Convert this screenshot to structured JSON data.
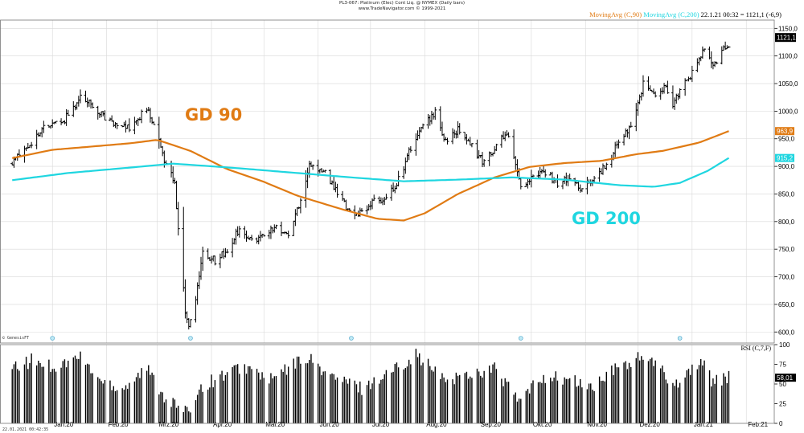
{
  "header": {
    "title": "PL3-067: Platinum (Elec) Cont Liq. @ NYMEX  (Daily bars)",
    "subtitle": "www.TradeNavigator.com © 1999-2021"
  },
  "legend": {
    "ma90_label": "MovingAvg (C,90)",
    "ma200_label": "MovingAvg (C,200)",
    "price_info": "22.1.21 00:32 = 1121,1 (-6,9)"
  },
  "annotations": {
    "gd90": "GD 90",
    "gd200": "GD 200"
  },
  "footer": {
    "timestamp": "22.01.2021 00:42:35",
    "credit": "© GenesisFT"
  },
  "colors": {
    "ma90": "#e07b14",
    "ma200": "#1fd6e0",
    "bars": "#000000",
    "grid": "#d8d8d8",
    "axis_box": "#000000"
  },
  "chart_data": [
    {
      "type": "ohlc",
      "title": "PL3-067: Platinum (Elec) Cont Liq. @ NYMEX  (Daily bars)",
      "x_labels": [
        "Jan.20",
        "Feb.20",
        "Mrz.20",
        "Apr.20",
        "Mai.20",
        "Jun.20",
        "Jul.20",
        "Aug.20",
        "Sep.20",
        "Okt.20",
        "Nov.20",
        "Dez.20",
        "Jan.21",
        "Feb.21"
      ],
      "y_ticks": [
        600,
        650,
        700,
        750,
        800,
        850,
        900,
        950,
        1000,
        1050,
        1100,
        1150
      ],
      "y_range": [
        580,
        1165
      ],
      "grid": true,
      "last_price_badge": "1121,1",
      "price_anchors": [
        {
          "date": "2019-12-09",
          "close": 905
        },
        {
          "date": "2019-12-17",
          "close": 935
        },
        {
          "date": "2019-12-27",
          "close": 968
        },
        {
          "date": "2020-01-08",
          "close": 985
        },
        {
          "date": "2020-01-17",
          "close": 1025
        },
        {
          "date": "2020-01-23",
          "close": 1015
        },
        {
          "date": "2020-02-05",
          "close": 975
        },
        {
          "date": "2020-02-14",
          "close": 970
        },
        {
          "date": "2020-02-24",
          "close": 1005
        },
        {
          "date": "2020-03-02",
          "close": 945
        },
        {
          "date": "2020-03-06",
          "close": 900
        },
        {
          "date": "2020-03-11",
          "close": 870
        },
        {
          "date": "2020-03-13",
          "close": 790
        },
        {
          "date": "2020-03-17",
          "close": 640
        },
        {
          "date": "2020-03-19",
          "close": 605
        },
        {
          "date": "2020-03-23",
          "close": 660
        },
        {
          "date": "2020-03-27",
          "close": 740
        },
        {
          "date": "2020-04-03",
          "close": 730
        },
        {
          "date": "2020-04-10",
          "close": 745
        },
        {
          "date": "2020-04-17",
          "close": 790
        },
        {
          "date": "2020-04-24",
          "close": 765
        },
        {
          "date": "2020-05-01",
          "close": 775
        },
        {
          "date": "2020-05-08",
          "close": 790
        },
        {
          "date": "2020-05-15",
          "close": 775
        },
        {
          "date": "2020-05-22",
          "close": 840
        },
        {
          "date": "2020-05-27",
          "close": 905
        },
        {
          "date": "2020-06-05",
          "close": 890
        },
        {
          "date": "2020-06-12",
          "close": 850
        },
        {
          "date": "2020-06-19",
          "close": 820
        },
        {
          "date": "2020-06-26",
          "close": 815
        },
        {
          "date": "2020-07-03",
          "close": 835
        },
        {
          "date": "2020-07-10",
          "close": 845
        },
        {
          "date": "2020-07-17",
          "close": 875
        },
        {
          "date": "2020-07-24",
          "close": 935
        },
        {
          "date": "2020-07-31",
          "close": 970
        },
        {
          "date": "2020-08-07",
          "close": 1000
        },
        {
          "date": "2020-08-12",
          "close": 945
        },
        {
          "date": "2020-08-20",
          "close": 965
        },
        {
          "date": "2020-08-28",
          "close": 935
        },
        {
          "date": "2020-09-04",
          "close": 905
        },
        {
          "date": "2020-09-11",
          "close": 940
        },
        {
          "date": "2020-09-18",
          "close": 960
        },
        {
          "date": "2020-09-25",
          "close": 860
        },
        {
          "date": "2020-10-02",
          "close": 880
        },
        {
          "date": "2020-10-09",
          "close": 890
        },
        {
          "date": "2020-10-16",
          "close": 870
        },
        {
          "date": "2020-10-23",
          "close": 880
        },
        {
          "date": "2020-10-30",
          "close": 855
        },
        {
          "date": "2020-11-06",
          "close": 885
        },
        {
          "date": "2020-11-13",
          "close": 900
        },
        {
          "date": "2020-11-20",
          "close": 945
        },
        {
          "date": "2020-11-27",
          "close": 970
        },
        {
          "date": "2020-12-04",
          "close": 1050
        },
        {
          "date": "2020-12-10",
          "close": 1030
        },
        {
          "date": "2020-12-17",
          "close": 1045
        },
        {
          "date": "2020-12-21",
          "close": 1015
        },
        {
          "date": "2020-12-28",
          "close": 1050
        },
        {
          "date": "2021-01-05",
          "close": 1090
        },
        {
          "date": "2021-01-08",
          "close": 1115
        },
        {
          "date": "2021-01-13",
          "close": 1080
        },
        {
          "date": "2021-01-19",
          "close": 1110
        },
        {
          "date": "2021-01-22",
          "close": 1121.1
        }
      ],
      "series": [
        {
          "name": "MovingAvg (C,90)",
          "color": "#e07b14",
          "last_value_badge": "963,9",
          "points": [
            {
              "date": "2019-12-09",
              "value": 915
            },
            {
              "date": "2020-01-01",
              "value": 930
            },
            {
              "date": "2020-01-20",
              "value": 935
            },
            {
              "date": "2020-02-15",
              "value": 942
            },
            {
              "date": "2020-03-01",
              "value": 948
            },
            {
              "date": "2020-03-20",
              "value": 928
            },
            {
              "date": "2020-04-10",
              "value": 895
            },
            {
              "date": "2020-05-01",
              "value": 872
            },
            {
              "date": "2020-05-20",
              "value": 847
            },
            {
              "date": "2020-06-15",
              "value": 822
            },
            {
              "date": "2020-07-05",
              "value": 805
            },
            {
              "date": "2020-07-20",
              "value": 802
            },
            {
              "date": "2020-08-01",
              "value": 815
            },
            {
              "date": "2020-08-20",
              "value": 850
            },
            {
              "date": "2020-09-10",
              "value": 880
            },
            {
              "date": "2020-09-30",
              "value": 899
            },
            {
              "date": "2020-10-20",
              "value": 906
            },
            {
              "date": "2020-11-10",
              "value": 910
            },
            {
              "date": "2020-11-30",
              "value": 922
            },
            {
              "date": "2020-12-15",
              "value": 928
            },
            {
              "date": "2021-01-05",
              "value": 943
            },
            {
              "date": "2021-01-22",
              "value": 963.9
            }
          ]
        },
        {
          "name": "MovingAvg (C,200)",
          "color": "#1fd6e0",
          "last_value_badge": "915,2",
          "points": [
            {
              "date": "2019-12-09",
              "value": 875
            },
            {
              "date": "2020-01-10",
              "value": 888
            },
            {
              "date": "2020-02-15",
              "value": 898
            },
            {
              "date": "2020-03-10",
              "value": 905
            },
            {
              "date": "2020-04-15",
              "value": 897
            },
            {
              "date": "2020-05-20",
              "value": 888
            },
            {
              "date": "2020-06-20",
              "value": 880
            },
            {
              "date": "2020-07-20",
              "value": 873
            },
            {
              "date": "2020-08-20",
              "value": 876
            },
            {
              "date": "2020-09-20",
              "value": 880
            },
            {
              "date": "2020-10-20",
              "value": 876
            },
            {
              "date": "2020-11-20",
              "value": 866
            },
            {
              "date": "2020-12-10",
              "value": 863
            },
            {
              "date": "2020-12-25",
              "value": 870
            },
            {
              "date": "2021-01-10",
              "value": 892
            },
            {
              "date": "2021-01-22",
              "value": 915.2
            }
          ]
        }
      ]
    },
    {
      "type": "bar",
      "title": "RSI (C,7,F)",
      "y_ticks": [
        0,
        25,
        50,
        75,
        100
      ],
      "y_range": [
        0,
        100
      ],
      "grid": false,
      "last_value_badge": "58,01",
      "rsi_anchors": [
        {
          "date": "2019-12-09",
          "value": 68
        },
        {
          "date": "2019-12-20",
          "value": 80
        },
        {
          "date": "2020-01-03",
          "value": 72
        },
        {
          "date": "2020-01-17",
          "value": 85
        },
        {
          "date": "2020-01-28",
          "value": 55
        },
        {
          "date": "2020-02-10",
          "value": 45
        },
        {
          "date": "2020-02-24",
          "value": 70
        },
        {
          "date": "2020-03-05",
          "value": 35
        },
        {
          "date": "2020-03-18",
          "value": 12
        },
        {
          "date": "2020-03-25",
          "value": 45
        },
        {
          "date": "2020-04-08",
          "value": 62
        },
        {
          "date": "2020-04-20",
          "value": 72
        },
        {
          "date": "2020-05-05",
          "value": 55
        },
        {
          "date": "2020-05-25",
          "value": 85
        },
        {
          "date": "2020-06-08",
          "value": 60
        },
        {
          "date": "2020-06-26",
          "value": 45
        },
        {
          "date": "2020-07-10",
          "value": 62
        },
        {
          "date": "2020-07-27",
          "value": 88
        },
        {
          "date": "2020-08-12",
          "value": 55
        },
        {
          "date": "2020-08-25",
          "value": 62
        },
        {
          "date": "2020-09-10",
          "value": 70
        },
        {
          "date": "2020-09-24",
          "value": 28
        },
        {
          "date": "2020-10-08",
          "value": 60
        },
        {
          "date": "2020-10-23",
          "value": 55
        },
        {
          "date": "2020-11-05",
          "value": 45
        },
        {
          "date": "2020-11-20",
          "value": 72
        },
        {
          "date": "2020-12-04",
          "value": 85
        },
        {
          "date": "2020-12-14",
          "value": 68
        },
        {
          "date": "2020-12-22",
          "value": 50
        },
        {
          "date": "2021-01-06",
          "value": 80
        },
        {
          "date": "2021-01-12",
          "value": 55
        },
        {
          "date": "2021-01-22",
          "value": 58.01
        }
      ]
    }
  ]
}
